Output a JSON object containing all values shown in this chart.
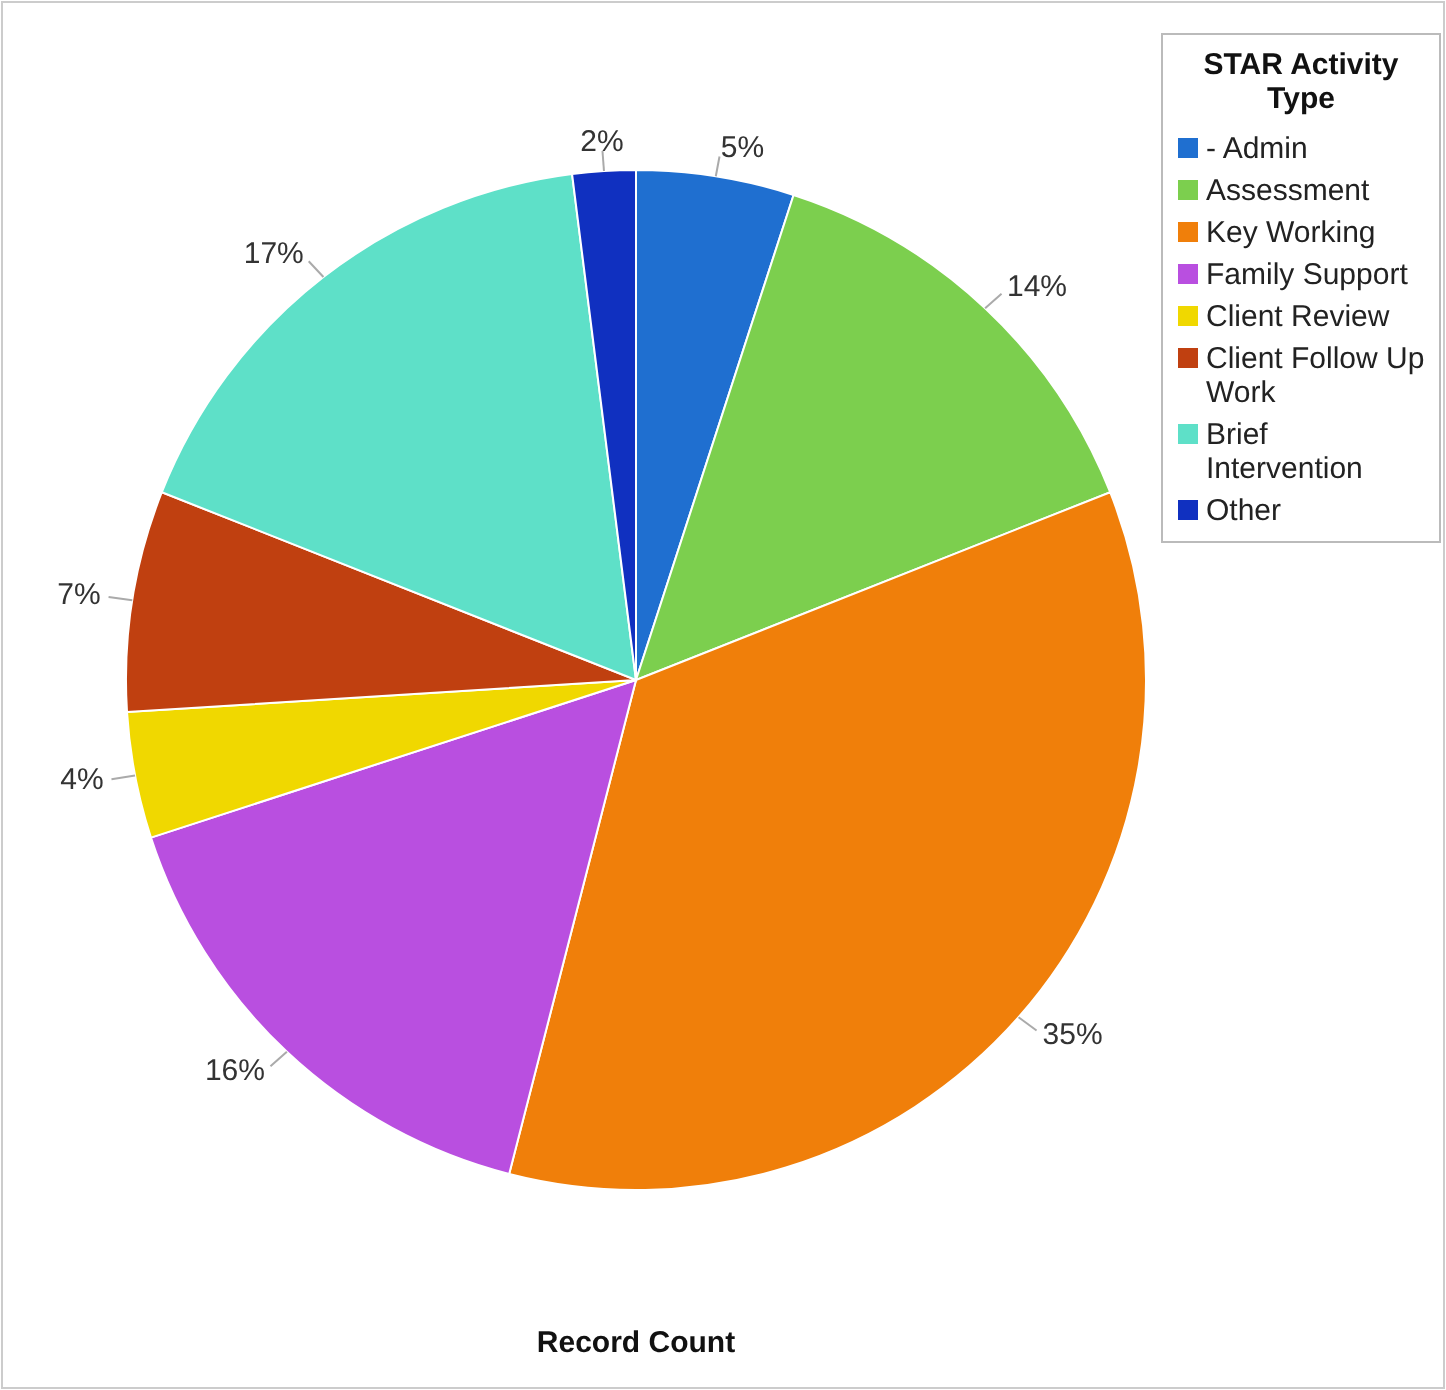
{
  "chart_data": {
    "type": "pie",
    "xlabel": "Record Count",
    "legend_title": "STAR Activity Type",
    "legend": "top right",
    "categories": [
      "- Admin",
      "Assessment",
      "Key Working",
      "Family Support",
      "Client Review",
      "Client Follow Up Work",
      "Brief Intervention",
      "Other"
    ],
    "values": [
      5,
      14,
      35,
      16,
      4,
      7,
      17,
      2
    ],
    "colors": [
      "#1f6fd0",
      "#7ccf4e",
      "#f07f0a",
      "#b94fe0",
      "#f0d800",
      "#c04010",
      "#5ee0c8",
      "#1030c0"
    ],
    "value_labels": [
      "5%",
      "14%",
      "35%",
      "16%",
      "4%",
      "7%",
      "17%",
      "2%"
    ]
  }
}
